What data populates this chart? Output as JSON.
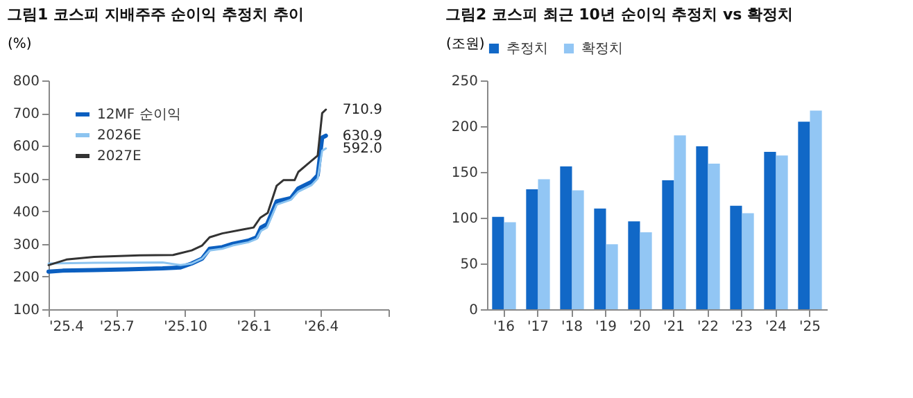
{
  "chart_data": [
    {
      "type": "line",
      "title": "그림1 코스피 지배주주 순이익 추정치 추이",
      "ylabel": "(%)",
      "legend": "top left",
      "grid": false,
      "xlim": [
        "2025-04-01",
        "2026-07-01"
      ],
      "xticks": [
        {
          "value": "2025-04-01",
          "label": "'25.4"
        },
        {
          "value": "2025-07-01",
          "label": "'25.7"
        },
        {
          "value": "2025-10-01",
          "label": "'25.10"
        },
        {
          "value": "2026-01-01",
          "label": "'26.1"
        },
        {
          "value": "2026-04-01",
          "label": "'26.4"
        },
        {
          "value": "2026-07-01",
          "label": null
        }
      ],
      "ylim": [
        100,
        800
      ],
      "yticks": [
        100,
        200,
        300,
        400,
        500,
        600,
        700,
        800
      ],
      "series": [
        {
          "name": "12MF 순이익",
          "color": "#0b5fc0",
          "x": [
            "2025-04-01",
            "2025-04-20",
            "2025-06-01",
            "2025-07-15",
            "2025-09-01",
            "2025-09-25",
            "2025-10-10",
            "2025-10-24",
            "2025-11-03",
            "2025-11-20",
            "2025-12-04",
            "2025-12-25",
            "2026-01-05",
            "2026-01-11",
            "2026-01-19",
            "2026-02-01",
            "2026-02-20",
            "2026-03-02",
            "2026-03-20",
            "2026-03-28",
            "2026-04-03",
            "2026-04-08"
          ],
          "values": [
            215,
            218,
            220,
            222,
            225,
            228,
            240,
            255,
            285,
            290,
            300,
            310,
            320,
            350,
            360,
            430,
            440,
            470,
            490,
            510,
            625,
            630.9
          ]
        },
        {
          "name": "2026E",
          "color": "#8cc4f0",
          "x": [
            "2025-04-01",
            "2025-06-01",
            "2025-09-01",
            "2025-09-25",
            "2025-10-10",
            "2025-10-24",
            "2025-11-03",
            "2025-11-20",
            "2025-12-04",
            "2025-12-25",
            "2026-01-05",
            "2026-01-11",
            "2026-01-19",
            "2026-02-01",
            "2026-02-20",
            "2026-03-02",
            "2026-03-20",
            "2026-03-28",
            "2026-04-03",
            "2026-04-08"
          ],
          "values": [
            240,
            242,
            243,
            235,
            240,
            255,
            280,
            285,
            295,
            305,
            315,
            340,
            350,
            420,
            435,
            460,
            480,
            500,
            585,
            592.0
          ]
        },
        {
          "name": "2027E",
          "color": "#333333",
          "x": [
            "2025-04-01",
            "2025-04-25",
            "2025-06-01",
            "2025-08-01",
            "2025-09-15",
            "2025-10-10",
            "2025-10-24",
            "2025-11-03",
            "2025-11-20",
            "2025-12-20",
            "2026-01-01",
            "2026-01-10",
            "2026-01-20",
            "2026-02-01",
            "2026-02-10",
            "2026-02-25",
            "2026-03-02",
            "2026-03-15",
            "2026-03-28",
            "2026-04-03",
            "2026-04-08"
          ],
          "values": [
            235,
            252,
            260,
            265,
            266,
            280,
            295,
            320,
            332,
            345,
            350,
            380,
            395,
            478,
            495,
            495,
            520,
            545,
            570,
            700,
            710.9
          ]
        }
      ],
      "annotations": [
        {
          "text": "710.9",
          "x": "2026-04-08",
          "y": 710.9
        },
        {
          "text": "630.9",
          "x": "2026-04-08",
          "y": 630.9
        },
        {
          "text": "592.0",
          "x": "2026-04-08",
          "y": 592.0
        }
      ]
    },
    {
      "type": "bar",
      "title": "그림2 코스피 최근 10년 순이익 추정치 vs 확정치",
      "ylabel": "(조원)",
      "legend": "top",
      "grid": false,
      "categories": [
        "'16",
        "'17",
        "'18",
        "'19",
        "'20",
        "'21",
        "'22",
        "'23",
        "'24",
        "'25"
      ],
      "ylim": [
        0,
        250
      ],
      "yticks": [
        0,
        50,
        100,
        150,
        200,
        250
      ],
      "series": [
        {
          "name": "추정치",
          "color": "#1168c7",
          "values": [
            101,
            131,
            156,
            110,
            96,
            141,
            178,
            113,
            172,
            205
          ]
        },
        {
          "name": "확정치",
          "color": "#92c6f4",
          "values": [
            95,
            142,
            130,
            71,
            84,
            190,
            159,
            105,
            168,
            217
          ]
        }
      ]
    }
  ]
}
